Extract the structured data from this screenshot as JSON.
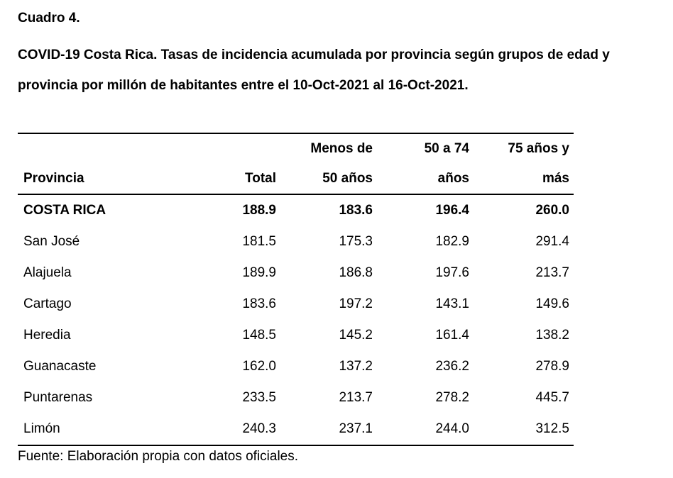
{
  "caption": {
    "label": "Cuadro 4.",
    "title": "COVID-19 Costa Rica. Tasas de incidencia acumulada por provincia según grupos de edad y provincia por millón de habitantes entre el 10-Oct-2021 al 16-Oct-2021."
  },
  "table": {
    "header_top": [
      "",
      "",
      "Menos de",
      "50 a 74",
      "75 años y"
    ],
    "header_bottom": [
      "Provincia",
      "Total",
      "50 años",
      "años",
      "más"
    ],
    "rows": [
      [
        "COSTA RICA",
        "188.9",
        "183.6",
        "196.4",
        "260.0"
      ],
      [
        "San José",
        "181.5",
        "175.3",
        "182.9",
        "291.4"
      ],
      [
        "Alajuela",
        "189.9",
        "186.8",
        "197.6",
        "213.7"
      ],
      [
        "Cartago",
        "183.6",
        "197.2",
        "143.1",
        "149.6"
      ],
      [
        "Heredia",
        "148.5",
        "145.2",
        "161.4",
        "138.2"
      ],
      [
        "Guanacaste",
        "162.0",
        "137.2",
        "236.2",
        "278.9"
      ],
      [
        "Puntarenas",
        "233.5",
        "213.7",
        "278.2",
        "445.7"
      ],
      [
        "Limón",
        "240.3",
        "237.1",
        "244.0",
        "312.5"
      ]
    ]
  },
  "source": "Fuente: Elaboración propia con datos oficiales."
}
